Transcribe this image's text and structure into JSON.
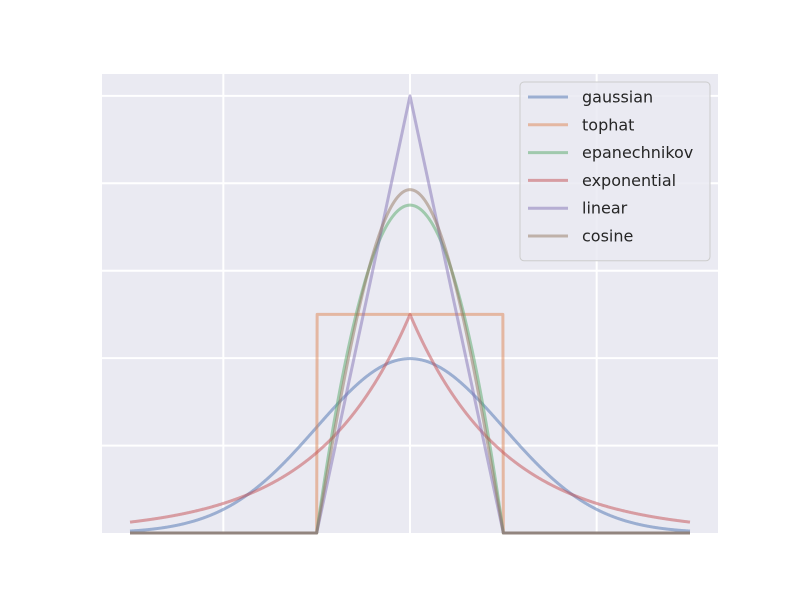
{
  "chart_data": {
    "type": "line",
    "title": "",
    "xlabel": "",
    "ylabel": "",
    "xlim": [
      -3.3,
      3.3
    ],
    "ylim": [
      0,
      1.05
    ],
    "x_gridlines": [
      -2,
      0,
      2
    ],
    "y_gridlines": [
      0.2,
      0.4,
      0.6,
      0.8,
      1.0
    ],
    "grid": true,
    "legend_position": "top-right",
    "background_color": "#eaeaf2",
    "series": [
      {
        "name": "gaussian",
        "color": "#4c72b0",
        "kernel": "gaussian",
        "bandwidth": 1,
        "x_range": [
          -3,
          3
        ]
      },
      {
        "name": "tophat",
        "color": "#dd8452",
        "kernel": "tophat",
        "bandwidth": 1,
        "x_range": [
          -3,
          3
        ]
      },
      {
        "name": "epanechnikov",
        "color": "#55a868",
        "kernel": "epanechnikov",
        "bandwidth": 1,
        "x_range": [
          -3,
          3
        ]
      },
      {
        "name": "exponential",
        "color": "#c44e52",
        "kernel": "exponential",
        "bandwidth": 1,
        "x_range": [
          -3,
          3
        ]
      },
      {
        "name": "linear",
        "color": "#8172b3",
        "kernel": "linear",
        "bandwidth": 1,
        "x_range": [
          -3,
          3
        ]
      },
      {
        "name": "cosine",
        "color": "#937860",
        "kernel": "cosine",
        "bandwidth": 1,
        "x_range": [
          -3,
          3
        ]
      }
    ]
  }
}
